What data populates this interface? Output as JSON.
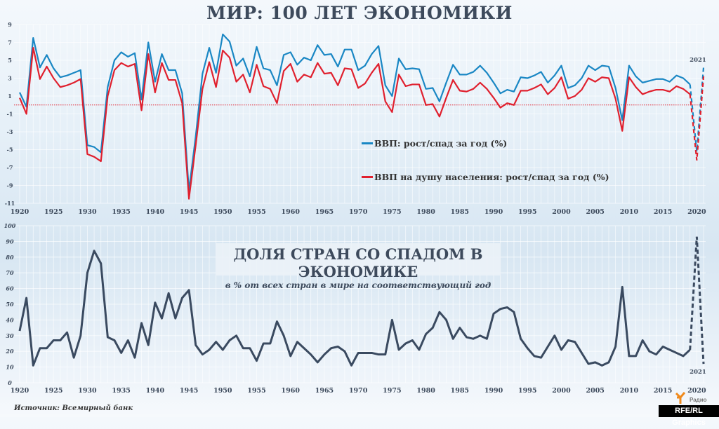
{
  "header": {
    "title": "МИР: 100 ЛЕТ ЭКОНОМИКИ"
  },
  "footer": {
    "source": "Источник: Всемирный банк",
    "brand": "RFE/RL Graphics",
    "radio": "Радио"
  },
  "colors": {
    "gdp": "#1a87c4",
    "gdp_per_capita": "#e0202e",
    "recession": "#3a4a60",
    "zero_line": "#e0202e"
  },
  "chart_data": [
    {
      "type": "line",
      "title": "МИР: 100 ЛЕТ ЭКОНОМИКИ",
      "xlabel": "",
      "ylabel": "",
      "xlim": [
        1920,
        2021
      ],
      "ylim": [
        -11,
        9
      ],
      "yticks": [
        9,
        7,
        5,
        3,
        1,
        -1,
        -3,
        -5,
        -7,
        -9,
        -11
      ],
      "xticks": [
        1920,
        1925,
        1930,
        1935,
        1940,
        1945,
        1950,
        1955,
        1960,
        1965,
        1970,
        1975,
        1980,
        1985,
        1990,
        1995,
        2000,
        2005,
        2010,
        2015,
        2020
      ],
      "grid": true,
      "legend_position": "center-right",
      "annotation": "2021",
      "forecast_from": 2019,
      "series": [
        {
          "name": "ВВП: рост/спад за год (%)",
          "values": [
            1.4,
            -0.2,
            7.5,
            4.2,
            5.6,
            4.1,
            3.1,
            3.3,
            3.6,
            3.9,
            -4.5,
            -4.7,
            -5.3,
            2.0,
            5.0,
            5.9,
            5.4,
            5.8,
            0.6,
            7.0,
            2.6,
            5.7,
            3.9,
            3.9,
            1.3,
            -9.6,
            -3.5,
            3.5,
            6.4,
            3.6,
            7.9,
            7.1,
            4.4,
            5.2,
            3.2,
            6.5,
            4.1,
            3.9,
            2.2,
            5.6,
            5.9,
            4.5,
            5.3,
            5.0,
            6.7,
            5.6,
            5.7,
            4.3,
            6.2,
            6.2,
            3.9,
            4.4,
            5.7,
            6.6,
            2.2,
            1.0,
            5.2,
            4.0,
            4.1,
            4.0,
            1.8,
            1.9,
            0.4,
            2.5,
            4.5,
            3.4,
            3.4,
            3.7,
            4.4,
            3.6,
            2.5,
            1.3,
            1.7,
            1.5,
            3.1,
            3.0,
            3.3,
            3.7,
            2.5,
            3.3,
            4.4,
            1.9,
            2.2,
            3.0,
            4.4,
            3.9,
            4.4,
            4.3,
            1.9,
            -1.7,
            4.4,
            3.2,
            2.5,
            2.7,
            2.9,
            2.9,
            2.6,
            3.3,
            3.0,
            2.3,
            -5.2,
            4.2
          ]
        },
        {
          "name": "ВВП на душу населения: рост/спад за год (%)",
          "values": [
            0.8,
            -1.0,
            6.4,
            2.9,
            4.3,
            3.0,
            2.0,
            2.2,
            2.5,
            2.9,
            -5.5,
            -5.8,
            -6.3,
            1.0,
            3.9,
            4.7,
            4.3,
            4.6,
            -0.6,
            5.7,
            1.4,
            4.7,
            2.8,
            2.8,
            0.2,
            -10.5,
            -4.5,
            1.8,
            4.8,
            2.0,
            6.1,
            5.3,
            2.6,
            3.4,
            1.4,
            4.5,
            2.1,
            1.8,
            0.2,
            3.8,
            4.6,
            2.6,
            3.4,
            3.1,
            4.7,
            3.5,
            3.6,
            2.2,
            4.1,
            4.0,
            1.9,
            2.4,
            3.6,
            4.6,
            0.4,
            -0.8,
            3.4,
            2.1,
            2.3,
            2.3,
            0.0,
            0.1,
            -1.3,
            0.8,
            2.8,
            1.6,
            1.5,
            1.8,
            2.5,
            1.8,
            0.8,
            -0.3,
            0.2,
            0.0,
            1.6,
            1.6,
            1.9,
            2.3,
            1.2,
            1.9,
            3.1,
            0.7,
            1.0,
            1.7,
            3.0,
            2.6,
            3.1,
            3.0,
            0.7,
            -2.9,
            3.1,
            2.0,
            1.2,
            1.5,
            1.7,
            1.7,
            1.5,
            2.1,
            1.8,
            1.2,
            -6.2,
            3.2
          ]
        }
      ]
    },
    {
      "type": "line",
      "title": "ДОЛЯ СТРАН СО СПАДОМ В ЭКОНОМИКЕ",
      "subtitle": "в % от всех стран в мире на соответствующий год",
      "xlim": [
        1920,
        2021
      ],
      "ylim": [
        0,
        100
      ],
      "yticks": [
        100,
        90,
        80,
        70,
        60,
        50,
        40,
        30,
        20,
        10,
        0
      ],
      "xticks": [
        1920,
        1925,
        1930,
        1935,
        1940,
        1945,
        1950,
        1955,
        1960,
        1965,
        1970,
        1975,
        1980,
        1985,
        1990,
        1995,
        2000,
        2005,
        2010,
        2015,
        2020
      ],
      "grid": true,
      "annotation": "2021",
      "forecast_from": 2019,
      "series": [
        {
          "name": "Доля стран со спадом",
          "values": [
            33,
            54,
            11,
            22,
            22,
            27,
            27,
            32,
            16,
            30,
            70,
            84,
            76,
            29,
            27,
            19,
            27,
            16,
            38,
            24,
            51,
            41,
            57,
            41,
            54,
            59,
            24,
            18,
            21,
            26,
            21,
            27,
            30,
            22,
            22,
            14,
            25,
            25,
            39,
            30,
            17,
            26,
            22,
            18,
            13,
            18,
            22,
            23,
            20,
            11,
            19,
            19,
            19,
            18,
            18,
            40,
            21,
            25,
            27,
            21,
            31,
            35,
            45,
            40,
            28,
            35,
            29,
            28,
            30,
            28,
            44,
            47,
            48,
            45,
            28,
            22,
            17,
            16,
            23,
            30,
            21,
            27,
            26,
            19,
            12,
            13,
            11,
            13,
            23,
            61,
            17,
            17,
            27,
            20,
            18,
            23,
            21,
            19,
            17,
            21,
            93,
            12
          ]
        }
      ]
    }
  ]
}
